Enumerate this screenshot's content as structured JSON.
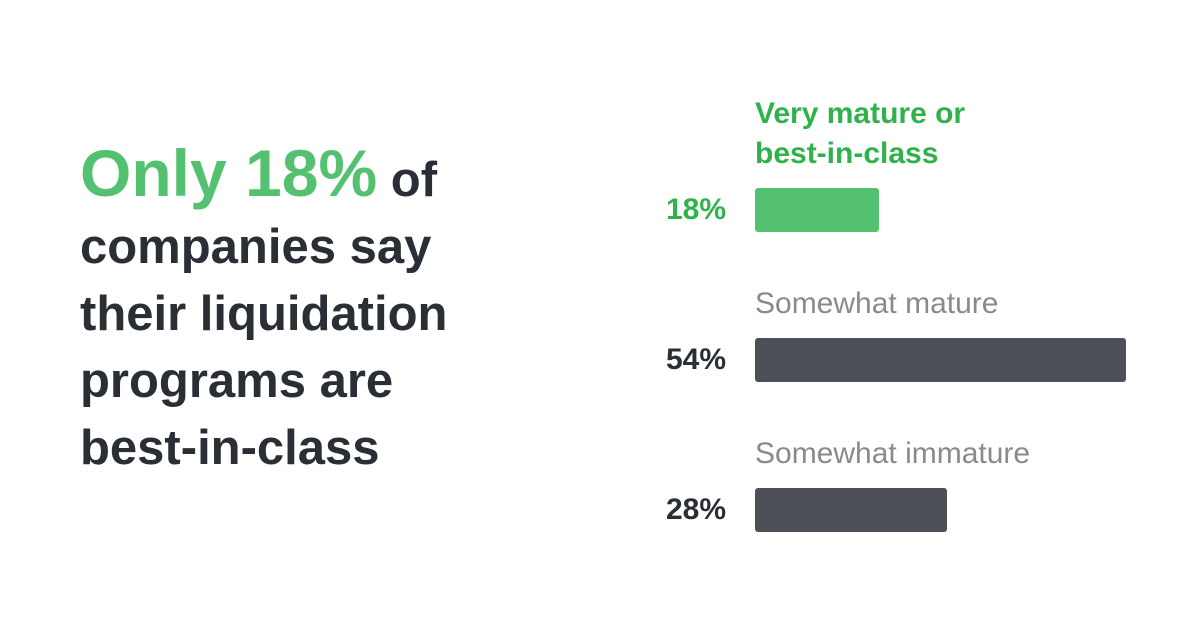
{
  "headline": {
    "highlight": "Only 18%",
    "lines": [
      "of",
      "companies say",
      "their liquidation",
      "programs are",
      "best-in-class"
    ]
  },
  "chart_data": {
    "type": "bar",
    "orientation": "horizontal",
    "categories": [
      "Very mature or best-in-class",
      "Somewhat mature",
      "Somewhat immature"
    ],
    "values": [
      18,
      54,
      28
    ],
    "value_labels": [
      "18%",
      "54%",
      "28%"
    ],
    "colors": [
      "#54c170",
      "#4d5056",
      "#4d5056"
    ],
    "label_colors": [
      "#2fb24a",
      "#8a8a8a",
      "#8a8a8a"
    ],
    "value_label_colors": [
      "#2fb24a",
      "#2a2e35",
      "#2a2e35"
    ]
  }
}
